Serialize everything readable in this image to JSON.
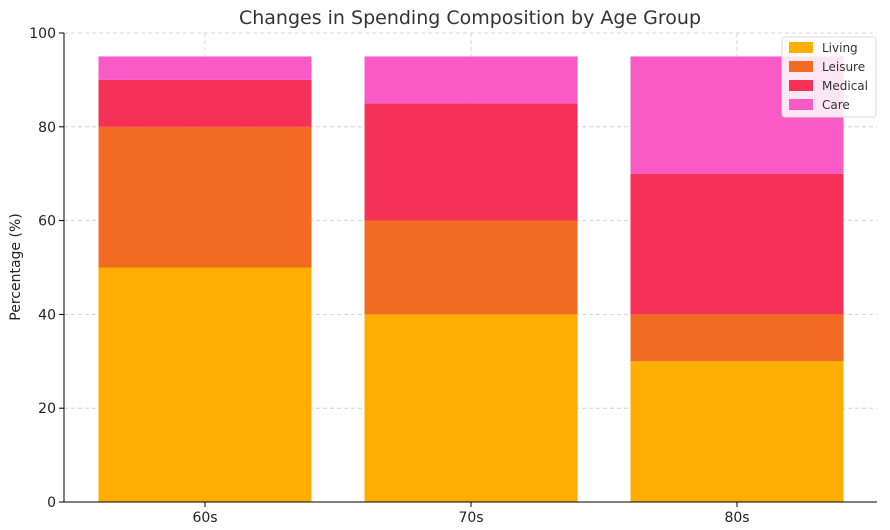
{
  "chart_data": {
    "type": "bar",
    "stacked": true,
    "title": "Changes in Spending Composition by Age Group",
    "xlabel": "",
    "ylabel": "Percentage (%)",
    "ylim": [
      0,
      100
    ],
    "yticks": [
      0,
      20,
      40,
      60,
      80,
      100
    ],
    "grid": true,
    "legend_position": "top-right",
    "categories": [
      "60s",
      "70s",
      "80s"
    ],
    "series": [
      {
        "name": "Living",
        "color": "#FFAE00",
        "values": [
          50,
          40,
          30
        ]
      },
      {
        "name": "Leisure",
        "color": "#F26B22",
        "values": [
          30,
          20,
          10
        ]
      },
      {
        "name": "Medical",
        "color": "#F53157",
        "values": [
          10,
          25,
          30
        ]
      },
      {
        "name": "Care",
        "color": "#F95AC5",
        "values": [
          5,
          10,
          25
        ]
      }
    ]
  }
}
